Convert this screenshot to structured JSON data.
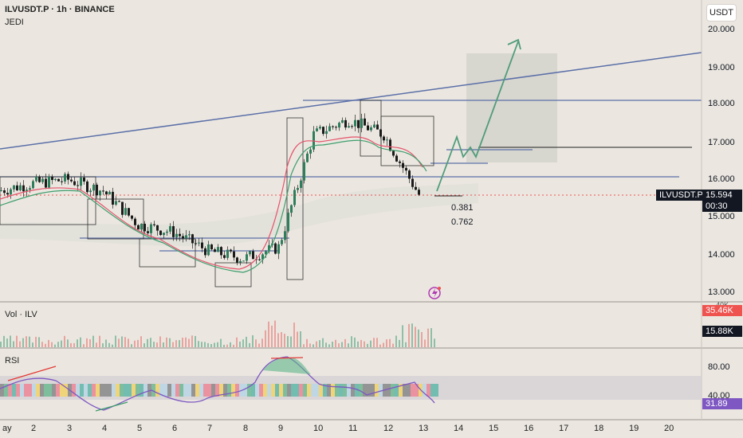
{
  "header": {
    "symbol_line": "ILVUSDT.P · 1h · BINANCE",
    "indicator": "JEDI"
  },
  "currency_button": "USDT",
  "price_axis": {
    "ticks": [
      "20.000",
      "19.000",
      "18.000",
      "17.000",
      "16.000",
      "15.000",
      "14.000",
      "13.000"
    ]
  },
  "price_label": {
    "symbol": "ILVUSDT.P",
    "price": "15.594",
    "countdown": "00:30"
  },
  "fib_labels": [
    "0.381",
    "0.762"
  ],
  "volume_pane": {
    "label": "Vol · ILV",
    "value_red": "35.46K",
    "value_dark": "15.88K",
    "partial_tick": "40K"
  },
  "rsi_pane": {
    "label": "RSI",
    "ticks": [
      "80.00",
      "40.00"
    ],
    "value": "31.89"
  },
  "time_axis": {
    "ticks": [
      "ay",
      "2",
      "3",
      "4",
      "5",
      "6",
      "7",
      "8",
      "9",
      "10",
      "11",
      "12",
      "13",
      "14",
      "15",
      "16",
      "17",
      "18",
      "19",
      "20"
    ]
  },
  "colors": {
    "bull": "#2e7d5b",
    "bear": "#1b1b1b",
    "trendline": "#5b6fa8",
    "arrow": "#4f9c7a",
    "red_tag": "#ef5350",
    "rsi_tag": "#7e57c2",
    "price_tag": "#131722",
    "bg": "#ebe7e0"
  },
  "chart_data": {
    "type": "candlestick",
    "x": [
      "1",
      "2",
      "3",
      "4",
      "5",
      "6",
      "7",
      "8",
      "9",
      "10",
      "11",
      "12",
      "13"
    ],
    "y": [
      15.7,
      15.9,
      16.0,
      15.7,
      14.8,
      14.6,
      14.1,
      13.9,
      14.2,
      17.2,
      17.6,
      17.2,
      15.6
    ],
    "ylim": [
      12.8,
      20.6
    ],
    "last_price": 15.594,
    "horizontal_levels": [
      18.1,
      16.05
    ],
    "rsi": {
      "value": 31.89,
      "levels": [
        80,
        40
      ]
    },
    "volume": {
      "last": 15.88,
      "max": 35.46
    }
  }
}
